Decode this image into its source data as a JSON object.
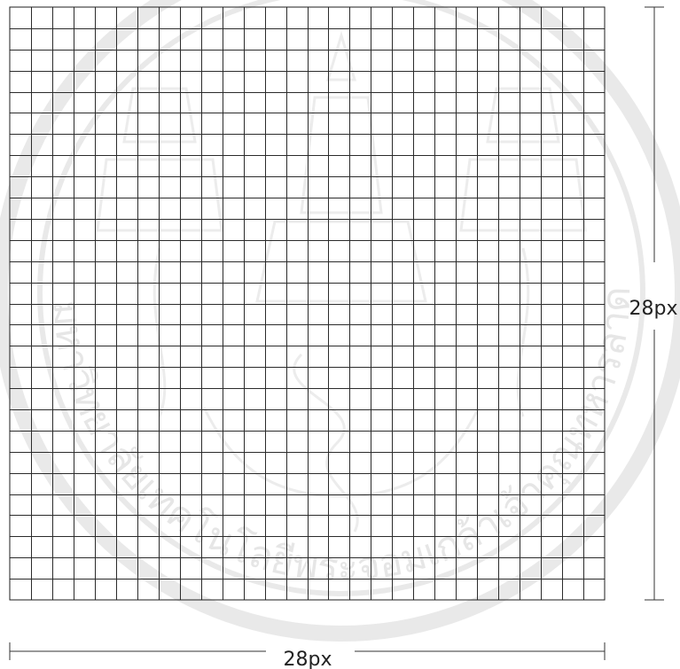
{
  "figure": {
    "grid": {
      "columns": 28,
      "rows": 28
    },
    "width_label": "28px",
    "height_label": "28px",
    "watermark": {
      "text": "ลิขสิทธิ์มหาวิทยาลัยเทคโนโลยีพระจอมเกล้าเจ้าคุณทหารลาดกระบัง"
    },
    "colors": {
      "grid_line": "#2b2b2b",
      "watermark": "#e6e6e6",
      "background": "#ffffff"
    }
  }
}
